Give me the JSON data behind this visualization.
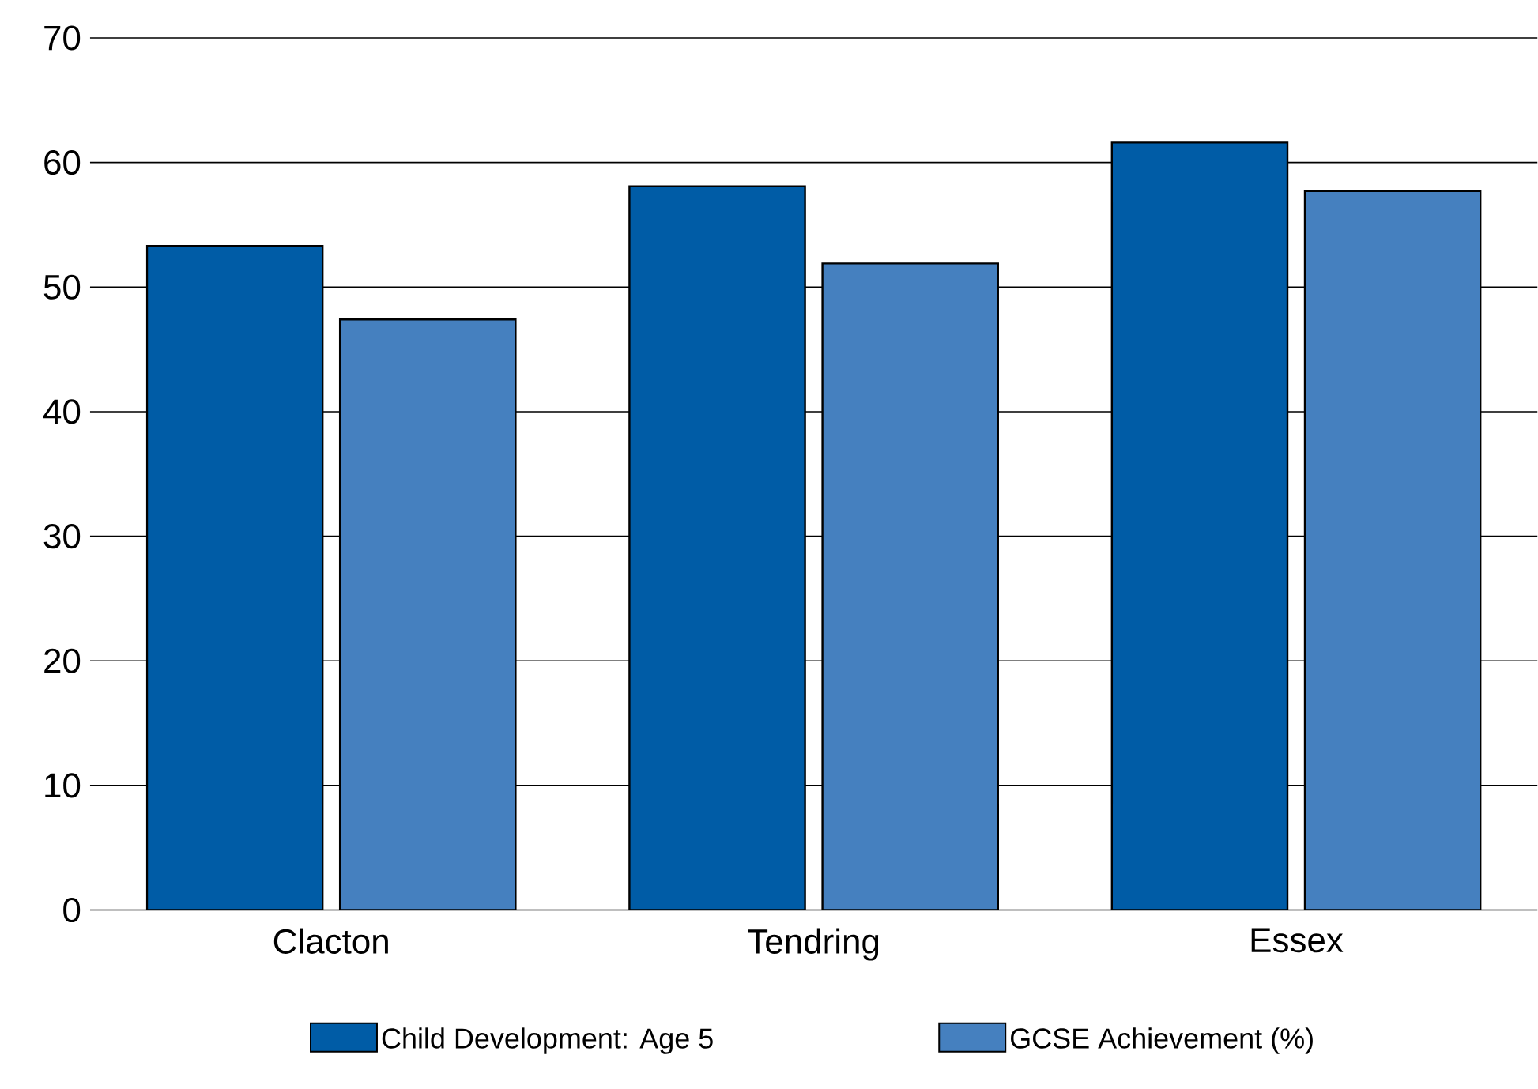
{
  "chart_data": {
    "type": "bar",
    "categories": [
      "Clacton",
      "Tendring",
      "Essex"
    ],
    "series": [
      {
        "name": "Child Development: Age 5",
        "color": "#005ca6",
        "values": [
          53.3,
          58.1,
          61.6
        ]
      },
      {
        "name": "GCSE Achievement (%)",
        "color": "#4580bf",
        "values": [
          47.4,
          51.9,
          57.7
        ]
      }
    ],
    "ylim": [
      0,
      70
    ],
    "yticks": [
      0,
      10,
      20,
      30,
      40,
      50,
      60,
      70
    ],
    "grid": "y",
    "legend": "bottom"
  }
}
